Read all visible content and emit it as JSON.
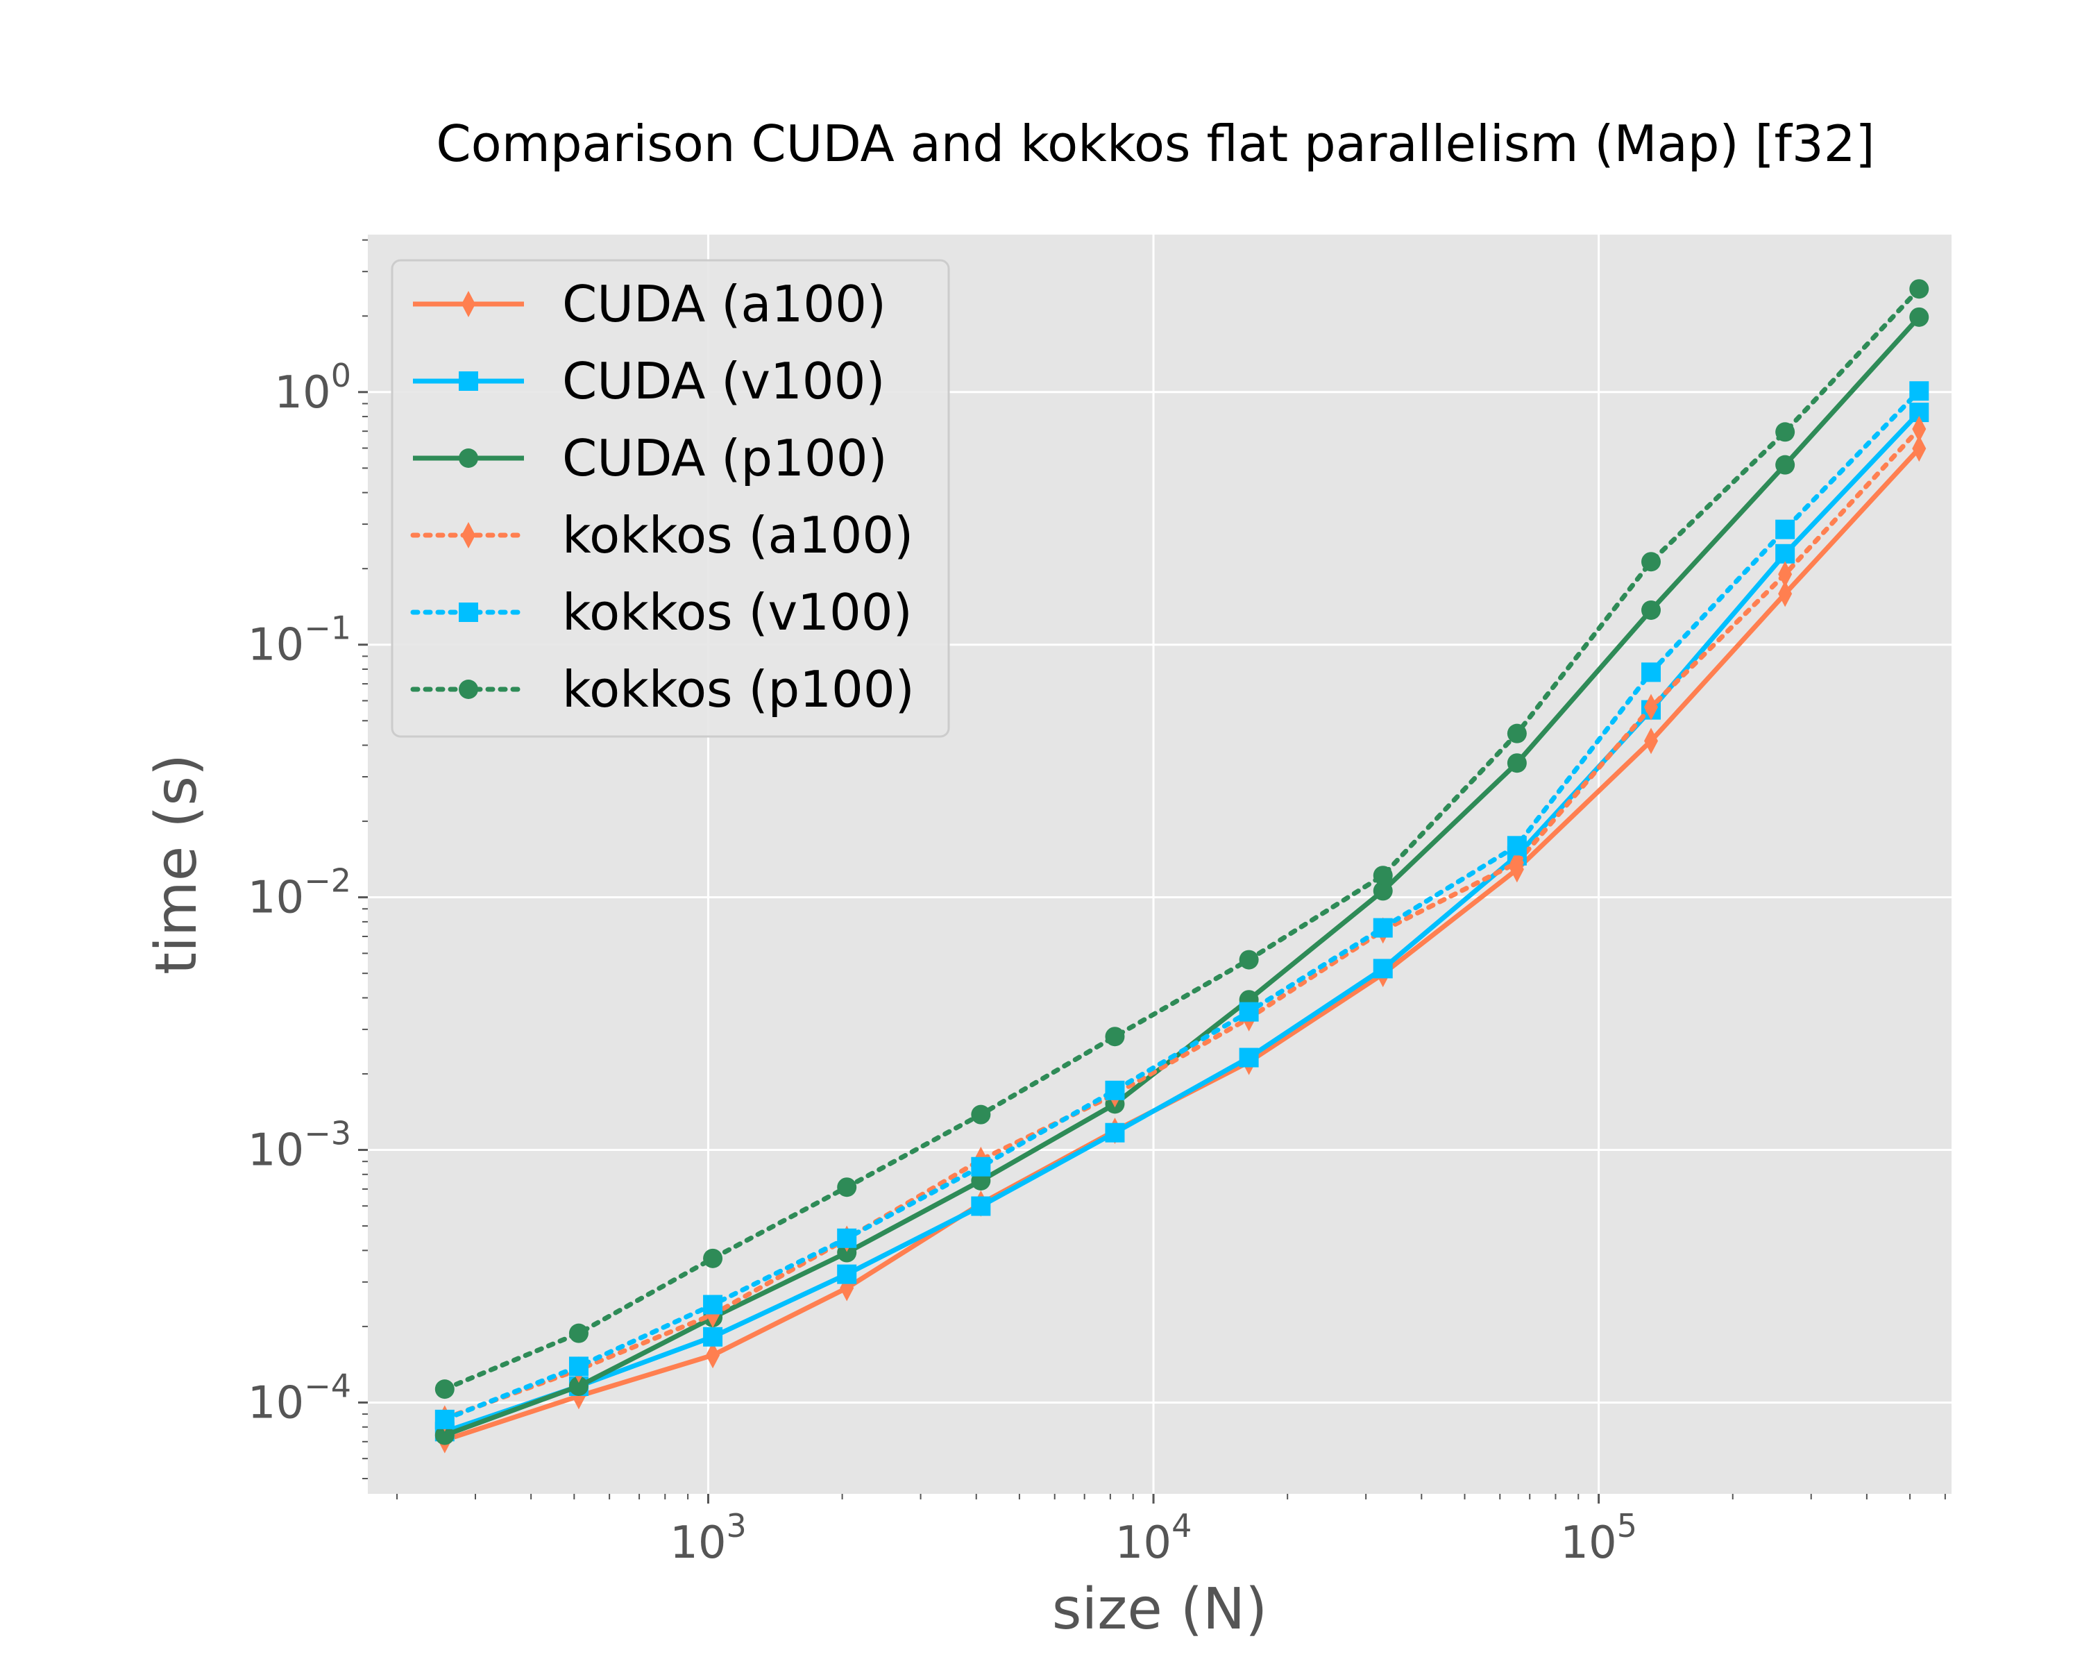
{
  "chart_data": {
    "type": "line",
    "title": "Comparison CUDA and kokkos flat parallelism (Map) [f32]",
    "xlabel": "size (N)",
    "ylabel": "time (s)",
    "xscale": "log",
    "yscale": "log",
    "xlim": [
      172,
      620000
    ],
    "ylim": [
      4.35e-05,
      4.2
    ],
    "x_ticks": [
      {
        "base": "10",
        "exp": "3",
        "value": 1000
      },
      {
        "base": "10",
        "exp": "4",
        "value": 10000
      },
      {
        "base": "10",
        "exp": "5",
        "value": 100000
      }
    ],
    "y_ticks": [
      {
        "base": "10",
        "exp": "−4",
        "value": 0.0001
      },
      {
        "base": "10",
        "exp": "−3",
        "value": 0.001
      },
      {
        "base": "10",
        "exp": "−2",
        "value": 0.01
      },
      {
        "base": "10",
        "exp": "−1",
        "value": 0.1
      },
      {
        "base": "10",
        "exp": "0",
        "value": 1
      }
    ],
    "grid": true,
    "legend_position": "top-left",
    "x": [
      256,
      512,
      1024,
      2048,
      4096,
      8192,
      16384,
      32768,
      65536,
      131072,
      262144,
      524288
    ],
    "series": [
      {
        "name": "CUDA (a100)",
        "color": "#FF7F50",
        "dash": "solid",
        "marker": "thin-diamond",
        "values": [
          7.1e-05,
          0.000106,
          0.000154,
          0.000284,
          0.000613,
          0.00119,
          0.00223,
          0.00497,
          0.0129,
          0.0416,
          0.159,
          0.598
        ]
      },
      {
        "name": "CUDA (v100)",
        "color": "#00BFFF",
        "dash": "solid",
        "marker": "square",
        "values": [
          7.67e-05,
          0.000116,
          0.000182,
          0.000322,
          0.000599,
          0.00117,
          0.00232,
          0.00522,
          0.0146,
          0.0552,
          0.229,
          0.831
        ]
      },
      {
        "name": "CUDA (p100)",
        "color": "#2E8B57",
        "dash": "solid",
        "marker": "circle",
        "values": [
          7.42e-05,
          0.000116,
          0.000217,
          0.000392,
          0.000755,
          0.00152,
          0.00393,
          0.0106,
          0.034,
          0.137,
          0.515,
          1.98
        ]
      },
      {
        "name": "kokkos (a100)",
        "color": "#FF7F50",
        "dash": "dotted",
        "marker": "thin-diamond",
        "values": [
          8.65e-05,
          0.000135,
          0.000223,
          0.000445,
          0.000913,
          0.00166,
          0.00332,
          0.00739,
          0.0137,
          0.0566,
          0.19,
          0.714
        ]
      },
      {
        "name": "kokkos (v100)",
        "color": "#00BFFF",
        "dash": "dotted",
        "marker": "square",
        "values": [
          8.57e-05,
          0.000139,
          0.000244,
          0.000447,
          0.000858,
          0.00172,
          0.00352,
          0.00757,
          0.016,
          0.0778,
          0.286,
          1.01
        ]
      },
      {
        "name": "kokkos (p100)",
        "color": "#2E8B57",
        "dash": "dotted",
        "marker": "circle",
        "values": [
          0.000113,
          0.000188,
          0.000372,
          0.000712,
          0.00138,
          0.00281,
          0.00566,
          0.0122,
          0.0445,
          0.213,
          0.695,
          2.56
        ]
      }
    ]
  }
}
